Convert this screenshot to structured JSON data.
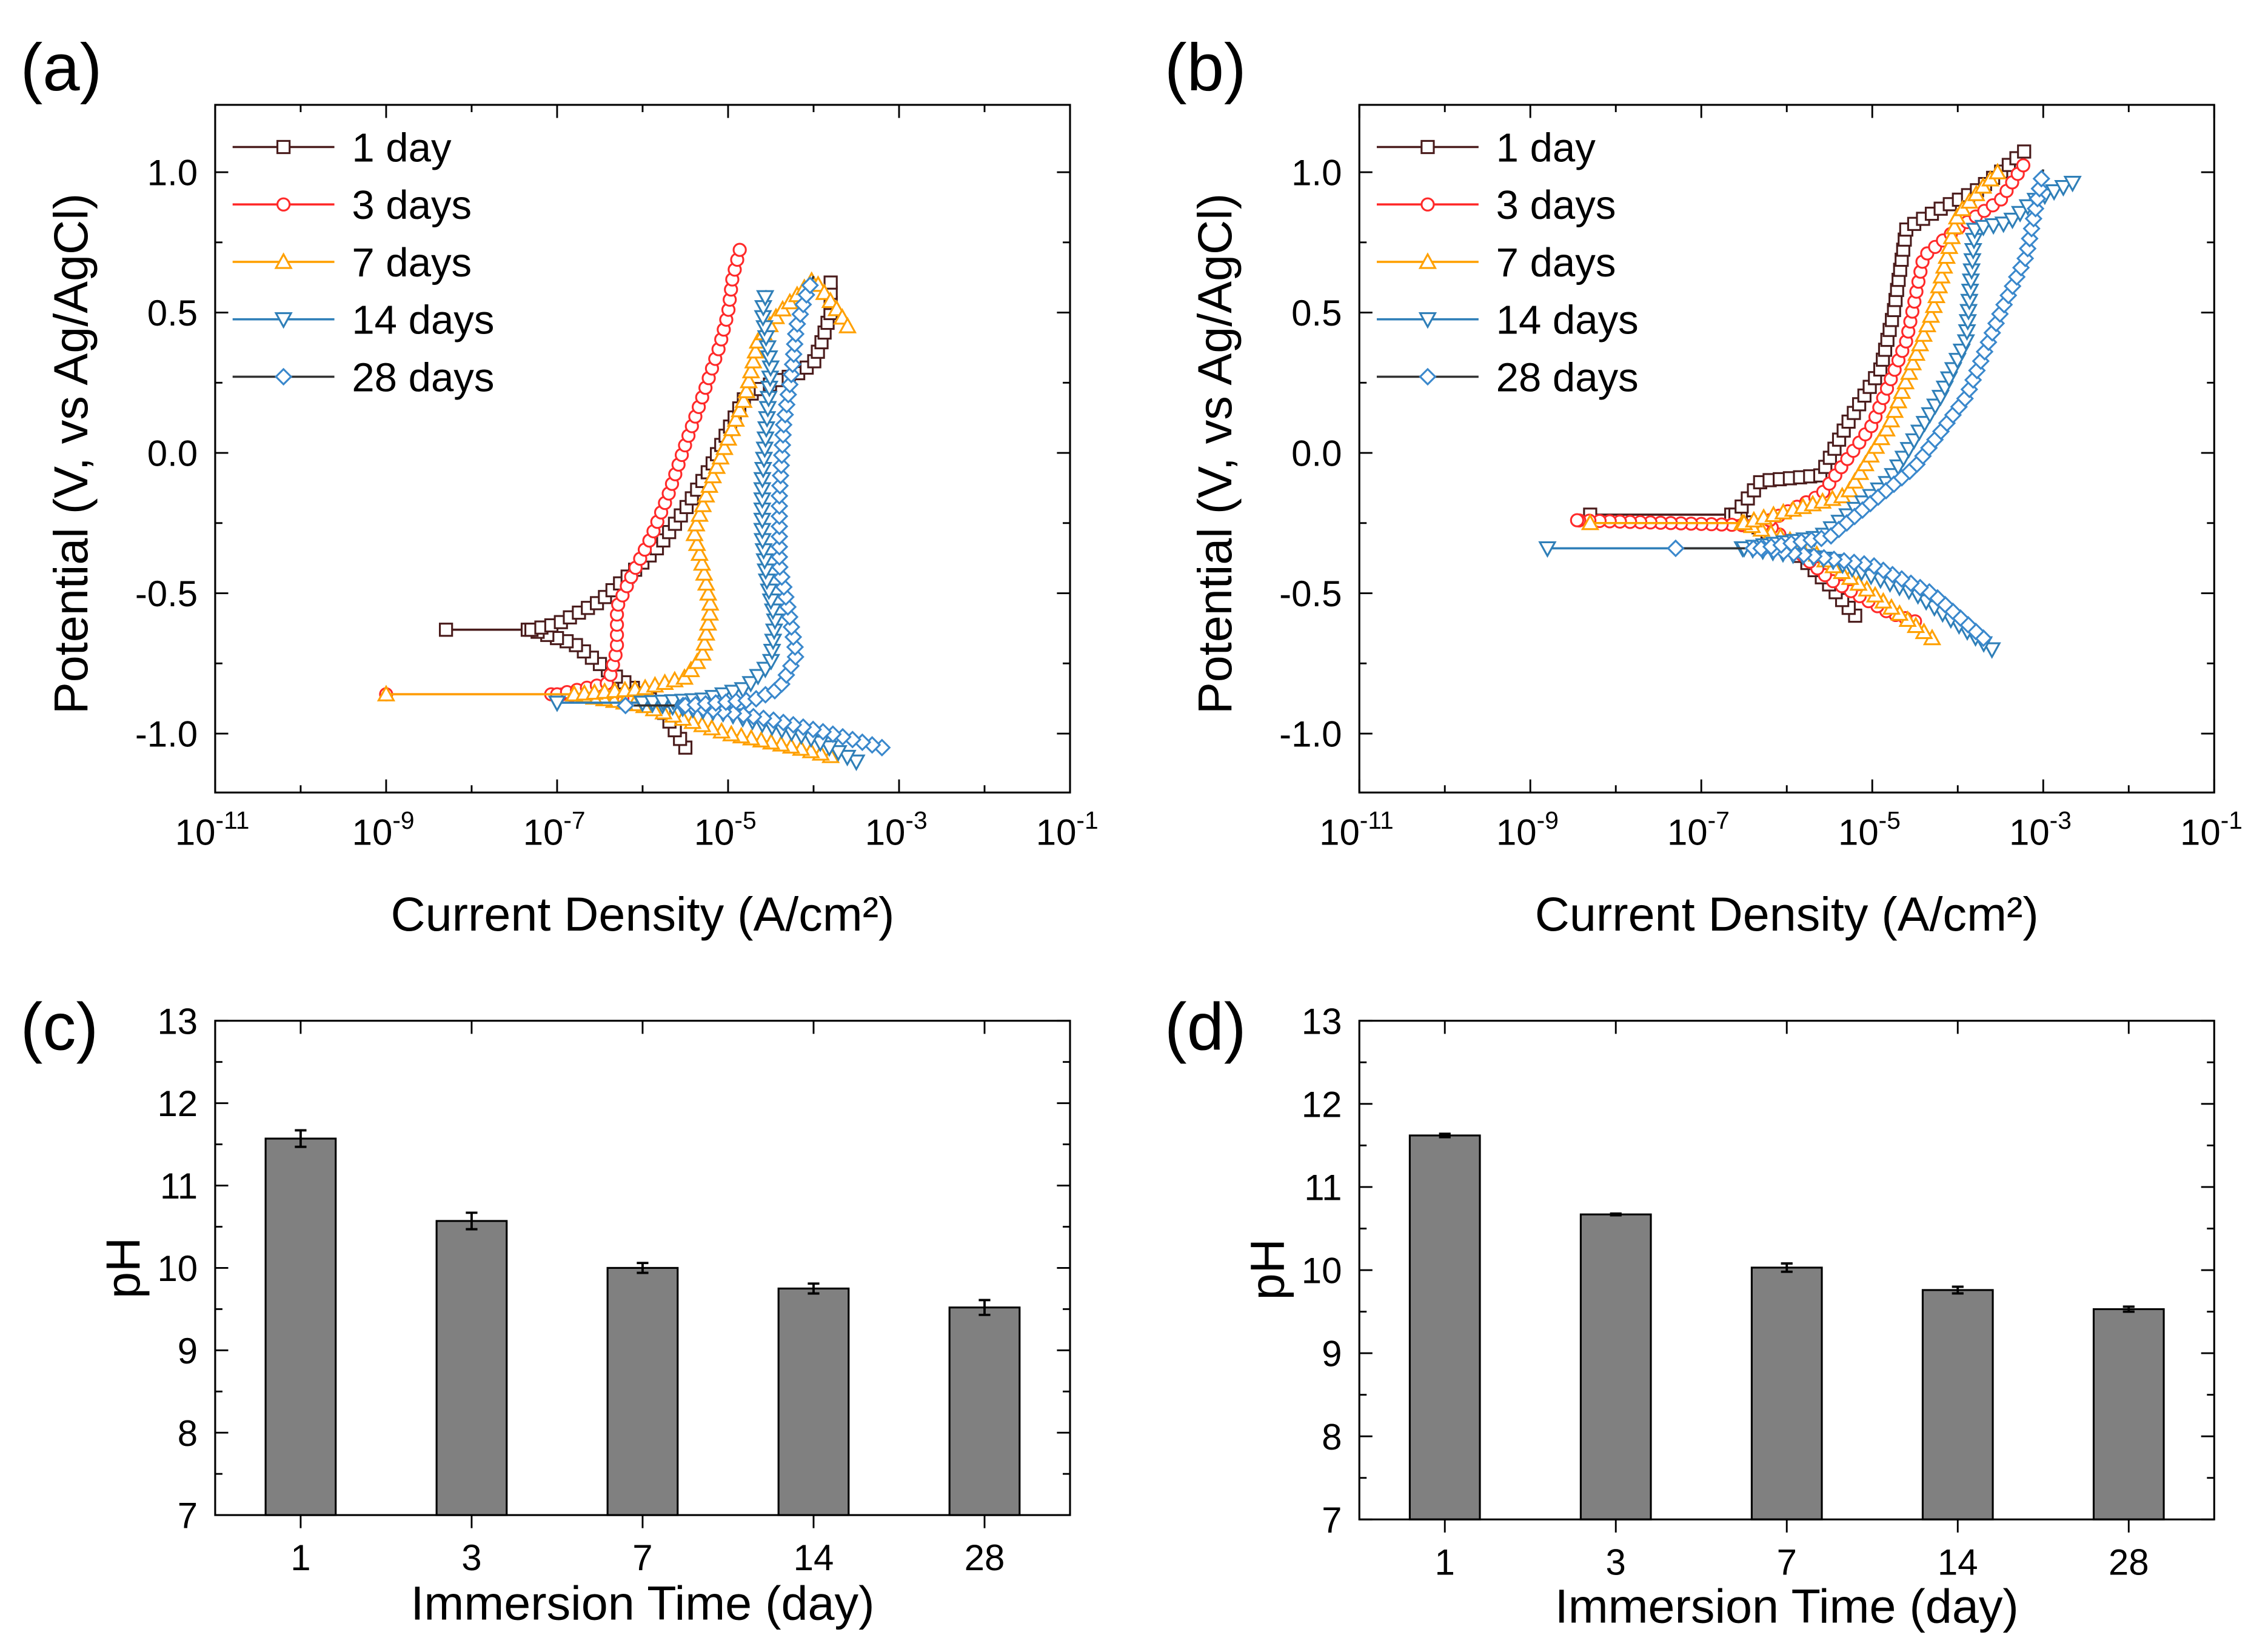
{
  "chart_data": [
    {
      "panel": "(a)",
      "type": "line",
      "xlabel": "Current Density (A/cm²)",
      "ylabel": "Potential (V, vs Ag/AgCl)",
      "xscale": "log",
      "xlim_log10": [
        -11,
        -1
      ],
      "ylim": [
        -1.21,
        1.24
      ],
      "xticks_exp": [
        "-11",
        "-9",
        "-7",
        "-5",
        "-3",
        "-1"
      ],
      "yticks": [
        "1.0",
        "0.5",
        "0.0",
        "-0.5",
        "-1.0"
      ],
      "legend_position": "top-left",
      "series": [
        {
          "name": "1 day",
          "line": "#4a1c1c",
          "marker": "square",
          "marker_color": "#4a1c1c",
          "log_i_E": [
            [
              -5.5,
              -1.05
            ],
            [
              -5.8,
              -0.9
            ],
            [
              -6.3,
              -0.8
            ],
            [
              -6.8,
              -0.68
            ],
            [
              -7.3,
              -0.63
            ],
            [
              -8.3,
              -0.63
            ],
            [
              -7.3,
              -0.63
            ],
            [
              -7.0,
              -0.61
            ],
            [
              -6.5,
              -0.53
            ],
            [
              -6.1,
              -0.42
            ],
            [
              -5.8,
              -0.33
            ],
            [
              -5.5,
              -0.2
            ],
            [
              -5.2,
              -0.05
            ],
            [
              -5.0,
              0.08
            ],
            [
              -4.8,
              0.2
            ],
            [
              -4.4,
              0.26
            ],
            [
              -4.2,
              0.28
            ],
            [
              -4.0,
              0.32
            ],
            [
              -3.9,
              0.4
            ],
            [
              -3.8,
              0.5
            ],
            [
              -3.8,
              0.63
            ]
          ]
        },
        {
          "name": "3 days",
          "line": "#ff2a2a",
          "marker": "circle",
          "marker_color": "#ff2a2a",
          "log_i_E": [
            [
              -6.0,
              -0.88
            ],
            [
              -6.4,
              -0.87
            ],
            [
              -7.0,
              -0.86
            ],
            [
              -9.0,
              -0.86
            ],
            [
              -7.0,
              -0.86
            ],
            [
              -6.4,
              -0.82
            ],
            [
              -6.3,
              -0.7
            ],
            [
              -6.3,
              -0.55
            ],
            [
              -6.1,
              -0.42
            ],
            [
              -5.9,
              -0.3
            ],
            [
              -5.7,
              -0.15
            ],
            [
              -5.5,
              0.03
            ],
            [
              -5.3,
              0.2
            ],
            [
              -5.1,
              0.38
            ],
            [
              -5.0,
              0.5
            ],
            [
              -4.95,
              0.62
            ],
            [
              -4.85,
              0.74
            ]
          ]
        },
        {
          "name": "7 days",
          "line": "#ffa000",
          "marker": "triangle-up",
          "marker_color": "#ffa000",
          "log_i_E": [
            [
              -3.8,
              -1.08
            ],
            [
              -4.2,
              -1.05
            ],
            [
              -5.0,
              -1.0
            ],
            [
              -6.0,
              -0.9
            ],
            [
              -6.8,
              -0.86
            ],
            [
              -9.0,
              -0.86
            ],
            [
              -6.8,
              -0.86
            ],
            [
              -6.0,
              -0.84
            ],
            [
              -5.5,
              -0.8
            ],
            [
              -5.3,
              -0.72
            ],
            [
              -5.2,
              -0.55
            ],
            [
              -5.3,
              -0.4
            ],
            [
              -5.4,
              -0.28
            ],
            [
              -5.2,
              -0.1
            ],
            [
              -5.0,
              0.05
            ],
            [
              -4.8,
              0.2
            ],
            [
              -4.65,
              0.4
            ],
            [
              -4.4,
              0.5
            ],
            [
              -4.0,
              0.62
            ],
            [
              -3.7,
              0.5
            ],
            [
              -3.6,
              0.45
            ]
          ]
        },
        {
          "name": "14 days",
          "line": "#2f7fb8",
          "marker": "triangle-down",
          "marker_color": "#2f7fb8",
          "log_i_E": [
            [
              -3.5,
              -1.1
            ],
            [
              -4.0,
              -1.02
            ],
            [
              -5.0,
              -0.93
            ],
            [
              -6.0,
              -0.89
            ],
            [
              -7.0,
              -0.89
            ],
            [
              -6.0,
              -0.89
            ],
            [
              -5.3,
              -0.88
            ],
            [
              -4.8,
              -0.84
            ],
            [
              -4.5,
              -0.75
            ],
            [
              -4.45,
              -0.6
            ],
            [
              -4.55,
              -0.45
            ],
            [
              -4.6,
              -0.3
            ],
            [
              -4.6,
              -0.1
            ],
            [
              -4.55,
              0.1
            ],
            [
              -4.5,
              0.3
            ],
            [
              -4.6,
              0.5
            ],
            [
              -4.55,
              0.58
            ]
          ]
        },
        {
          "name": "28 days",
          "line": "#333333",
          "marker": "diamond",
          "marker_color": "#3a88cc",
          "log_i_E": [
            [
              -3.2,
              -1.05
            ],
            [
              -3.8,
              -1.0
            ],
            [
              -4.5,
              -0.95
            ],
            [
              -5.5,
              -0.9
            ],
            [
              -6.2,
              -0.9
            ],
            [
              -5.5,
              -0.9
            ],
            [
              -4.7,
              -0.88
            ],
            [
              -4.4,
              -0.84
            ],
            [
              -4.2,
              -0.72
            ],
            [
              -4.3,
              -0.55
            ],
            [
              -4.4,
              -0.4
            ],
            [
              -4.4,
              -0.15
            ],
            [
              -4.35,
              0.1
            ],
            [
              -4.25,
              0.3
            ],
            [
              -4.2,
              0.45
            ],
            [
              -4.1,
              0.55
            ],
            [
              -4.0,
              0.63
            ]
          ]
        }
      ]
    },
    {
      "panel": "(b)",
      "type": "line",
      "xlabel": "Current Density (A/cm²)",
      "ylabel": "Potential (V, vs Ag/AgCl)",
      "xscale": "log",
      "xlim_log10": [
        -11,
        -1
      ],
      "ylim": [
        -1.21,
        1.24
      ],
      "xticks_exp": [
        "-11",
        "-9",
        "-7",
        "-5",
        "-3",
        "-1"
      ],
      "yticks": [
        "1.0",
        "0.5",
        "0.0",
        "-0.5",
        "-1.0"
      ],
      "legend_position": "top-left",
      "series": [
        {
          "name": "1 day",
          "line": "#4a1c1c",
          "marker": "square",
          "marker_color": "#4a1c1c",
          "log_i_E": [
            [
              -5.2,
              -0.58
            ],
            [
              -5.5,
              -0.47
            ],
            [
              -6.0,
              -0.32
            ],
            [
              -6.6,
              -0.22
            ],
            [
              -8.3,
              -0.22
            ],
            [
              -6.6,
              -0.22
            ],
            [
              -6.3,
              -0.1
            ],
            [
              -5.6,
              -0.08
            ],
            [
              -5.3,
              0.1
            ],
            [
              -4.9,
              0.3
            ],
            [
              -4.75,
              0.5
            ],
            [
              -4.6,
              0.8
            ],
            [
              -4.2,
              0.87
            ],
            [
              -3.8,
              0.93
            ],
            [
              -3.5,
              1.0
            ],
            [
              -3.2,
              1.08
            ]
          ]
        },
        {
          "name": "3 days",
          "line": "#ff2a2a",
          "marker": "circle",
          "marker_color": "#ff2a2a",
          "log_i_E": [
            [
              -4.5,
              -0.6
            ],
            [
              -4.8,
              -0.57
            ],
            [
              -5.5,
              -0.45
            ],
            [
              -6.2,
              -0.26
            ],
            [
              -8.5,
              -0.24
            ],
            [
              -6.2,
              -0.24
            ],
            [
              -5.6,
              -0.15
            ],
            [
              -5.0,
              0.1
            ],
            [
              -4.6,
              0.4
            ],
            [
              -4.4,
              0.7
            ],
            [
              -4.0,
              0.8
            ],
            [
              -3.5,
              0.9
            ],
            [
              -3.2,
              1.04
            ]
          ]
        },
        {
          "name": "7 days",
          "line": "#ffa000",
          "marker": "triangle-up",
          "marker_color": "#ffa000",
          "log_i_E": [
            [
              -4.3,
              -0.66
            ],
            [
              -5.0,
              -0.5
            ],
            [
              -5.8,
              -0.33
            ],
            [
              -6.5,
              -0.25
            ],
            [
              -8.3,
              -0.25
            ],
            [
              -6.5,
              -0.25
            ],
            [
              -5.3,
              -0.15
            ],
            [
              -4.8,
              0.1
            ],
            [
              -4.3,
              0.5
            ],
            [
              -4.0,
              0.85
            ],
            [
              -3.7,
              0.95
            ],
            [
              -3.5,
              1.01
            ]
          ]
        },
        {
          "name": "14 days",
          "line": "#2f7fb8",
          "marker": "triangle-down",
          "marker_color": "#2f7fb8",
          "log_i_E": [
            [
              -3.6,
              -0.7
            ],
            [
              -4.5,
              -0.5
            ],
            [
              -5.5,
              -0.38
            ],
            [
              -6.5,
              -0.34
            ],
            [
              -8.8,
              -0.34
            ],
            [
              -6.5,
              -0.34
            ],
            [
              -5.6,
              -0.3
            ],
            [
              -4.8,
              -0.1
            ],
            [
              -4.2,
              0.2
            ],
            [
              -3.9,
              0.4
            ],
            [
              -3.8,
              0.8
            ],
            [
              -3.4,
              0.82
            ],
            [
              -3.1,
              0.9
            ],
            [
              -2.6,
              0.97
            ]
          ]
        },
        {
          "name": "28 days",
          "line": "#333333",
          "marker": "diamond",
          "marker_color": "#3a88cc",
          "log_i_E": [
            [
              -3.7,
              -0.66
            ],
            [
              -4.3,
              -0.5
            ],
            [
              -5.0,
              -0.4
            ],
            [
              -6.3,
              -0.34
            ],
            [
              -7.3,
              -0.34
            ],
            [
              -6.3,
              -0.34
            ],
            [
              -5.5,
              -0.3
            ],
            [
              -4.5,
              -0.05
            ],
            [
              -3.9,
              0.2
            ],
            [
              -3.5,
              0.5
            ],
            [
              -3.2,
              0.7
            ],
            [
              -3.0,
              1.01
            ]
          ]
        }
      ]
    },
    {
      "panel": "(c)",
      "type": "bar",
      "xlabel": "Immersion Time (day)",
      "ylabel": "pH",
      "ylim": [
        7,
        13
      ],
      "yticks": [
        "13",
        "12",
        "11",
        "10",
        "9",
        "8",
        "7"
      ],
      "categories": [
        "1",
        "3",
        "7",
        "14",
        "28"
      ],
      "values": [
        11.57,
        10.57,
        10.0,
        9.75,
        9.52
      ],
      "errors": [
        0.1,
        0.1,
        0.06,
        0.06,
        0.09
      ],
      "bar_color": "#808080"
    },
    {
      "panel": "(d)",
      "type": "bar",
      "xlabel": "Immersion Time (day)",
      "ylabel": "pH",
      "ylim": [
        7,
        13
      ],
      "yticks": [
        "13",
        "12",
        "11",
        "10",
        "9",
        "8",
        "7"
      ],
      "categories": [
        "1",
        "3",
        "7",
        "14",
        "28"
      ],
      "values": [
        11.62,
        10.67,
        10.03,
        9.76,
        9.53
      ],
      "errors": [
        0.02,
        0.01,
        0.05,
        0.04,
        0.03
      ],
      "bar_color": "#808080"
    }
  ]
}
